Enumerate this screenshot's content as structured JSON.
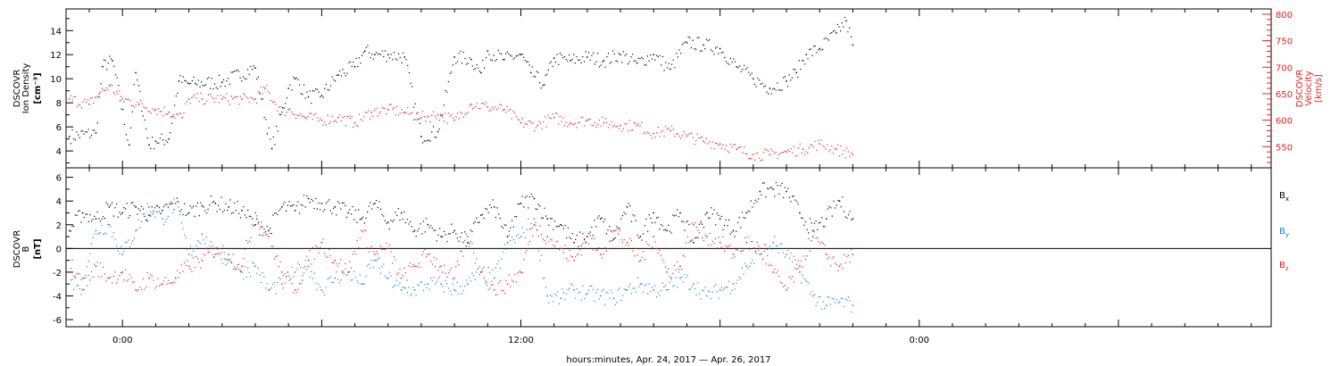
{
  "xlabel": "hours:minutes, Apr. 24, 2017 — Apr. 26, 2017",
  "x_axis": {
    "range_hours": [
      -1.7,
      34.6
    ],
    "labels": [
      {
        "hour": 0,
        "text": "0:00"
      },
      {
        "hour": 12,
        "text": "12:00"
      },
      {
        "hour": 24,
        "text": "0:00"
      }
    ],
    "major_ticks_hours": [
      0,
      6,
      12,
      18,
      24,
      30
    ],
    "minor_ticks_hours": [
      -1,
      1,
      2,
      3,
      4,
      5,
      7,
      8,
      9,
      10,
      11,
      13,
      14,
      15,
      16,
      17,
      19,
      20,
      21,
      22,
      23,
      25,
      26,
      27,
      28,
      29,
      31,
      32,
      33,
      34
    ]
  },
  "colors": {
    "density": "#000000",
    "velocity": "#e8201c",
    "bx": "#000000",
    "by": "#1f7fd6",
    "bz": "#e8201c"
  },
  "chart_data": [
    {
      "type": "scatter",
      "panel": "top",
      "ylabel_left": [
        "DSCOVR",
        "Ion Density",
        "[cm⁻³]"
      ],
      "ylabel_right": [
        "DSCOVR",
        "Velocity",
        "[km/s]"
      ],
      "ylim_left": [
        2.6,
        15.8
      ],
      "yticks_left": [
        4,
        6,
        8,
        10,
        12,
        14
      ],
      "ylim_right": [
        510,
        810
      ],
      "yticks_right": [
        550,
        600,
        650,
        700,
        750,
        800
      ],
      "series": [
        {
          "key": "density",
          "axis": "left",
          "x": [
            -1.6,
            -0.8,
            -0.6,
            -0.3,
            0.2,
            0.4,
            0.8,
            1.0,
            1.4,
            1.7,
            2.0,
            2.2,
            3.0,
            4.0,
            4.5,
            5.0,
            5.2,
            5.6,
            6.0,
            6.5,
            7.0,
            7.3,
            7.6,
            8.0,
            8.5,
            9.0,
            9.5,
            10.0,
            10.5,
            10.8,
            11.0,
            11.5,
            12.0,
            12.3,
            12.7,
            13.0,
            13.5,
            14.0,
            14.5,
            15.0,
            15.5,
            16.0,
            16.5,
            17.0,
            17.5,
            18.0,
            18.5,
            19.0,
            19.5,
            20.0,
            20.3,
            20.6,
            21.0,
            21.5,
            21.8,
            22.0
          ],
          "y": [
            5.2,
            5.5,
            11.0,
            11.5,
            4.5,
            10.5,
            4.5,
            4.8,
            5.0,
            9.8,
            9.6,
            9.6,
            9.7,
            10.9,
            4.2,
            9.2,
            10.0,
            8.5,
            8.6,
            10.3,
            11.0,
            12.3,
            12.0,
            12.0,
            11.8,
            5.2,
            5.6,
            11.8,
            11.6,
            10.5,
            12.3,
            11.6,
            12.0,
            10.5,
            9.5,
            11.7,
            11.5,
            11.8,
            11.5,
            12.0,
            11.3,
            12.0,
            10.8,
            13.0,
            12.8,
            12.5,
            11.0,
            10.0,
            9.2,
            9.8,
            10.5,
            12.0,
            12.5,
            13.8,
            14.8,
            12.8
          ]
        },
        {
          "key": "velocity",
          "axis": "right",
          "x": [
            -1.6,
            -1.0,
            -0.7,
            -0.4,
            0.0,
            0.5,
            1.0,
            1.4,
            1.8,
            2.0,
            2.4,
            3.0,
            3.6,
            4.0,
            4.3,
            4.8,
            5.0,
            5.5,
            6.0,
            6.5,
            7.0,
            7.5,
            8.0,
            8.5,
            9.0,
            9.5,
            10.0,
            10.5,
            11.0,
            11.5,
            12.0,
            12.5,
            13.0,
            13.5,
            14.0,
            14.5,
            15.0,
            15.5,
            16.0,
            16.5,
            17.0,
            17.5,
            18.0,
            18.5,
            19.0,
            19.5,
            20.0,
            20.5,
            21.0,
            21.5,
            22.0
          ],
          "y": [
            640,
            630,
            650,
            665,
            640,
            630,
            620,
            615,
            605,
            640,
            640,
            640,
            640,
            640,
            660,
            615,
            620,
            605,
            600,
            605,
            595,
            615,
            620,
            615,
            605,
            610,
            600,
            630,
            625,
            620,
            595,
            590,
            605,
            595,
            600,
            595,
            590,
            590,
            575,
            580,
            570,
            560,
            555,
            545,
            535,
            535,
            540,
            545,
            555,
            545,
            535
          ]
        }
      ]
    },
    {
      "type": "scatter",
      "panel": "bottom",
      "ylabel_left": [
        "DSCOVR",
        "B",
        "[nT]"
      ],
      "ylim": [
        -6.6,
        6.8
      ],
      "yticks": [
        -6,
        -4,
        -2,
        0,
        2,
        4,
        6
      ],
      "zero_line": true,
      "legend_position": "right",
      "series": [
        {
          "key": "bx",
          "name": "B",
          "subscript": "x",
          "x": [
            -1.6,
            -1.2,
            -0.8,
            -0.4,
            0.0,
            0.4,
            0.8,
            1.2,
            1.6,
            2.0,
            2.4,
            2.8,
            3.2,
            3.6,
            4.0,
            4.4,
            4.8,
            5.2,
            5.6,
            6.0,
            6.4,
            6.8,
            7.2,
            7.6,
            8.0,
            8.4,
            8.8,
            9.2,
            9.6,
            10.0,
            10.4,
            10.8,
            11.2,
            11.6,
            12.0,
            12.4,
            12.8,
            13.2,
            13.6,
            14.0,
            14.4,
            14.8,
            15.2,
            15.6,
            16.0,
            16.4,
            16.8,
            17.2,
            17.6,
            18.0,
            18.4,
            18.8,
            19.2,
            19.6,
            20.0,
            20.4,
            20.8,
            21.2,
            21.6,
            22.0
          ],
          "y": [
            1.5,
            3.0,
            2.5,
            3.5,
            3.0,
            3.5,
            2.8,
            3.2,
            3.8,
            3.0,
            3.6,
            3.8,
            3.5,
            3.2,
            2.0,
            1.5,
            3.5,
            3.2,
            4.2,
            3.8,
            3.5,
            3.0,
            2.5,
            3.8,
            2.2,
            3.0,
            1.5,
            2.0,
            1.0,
            1.5,
            0.5,
            2.8,
            3.5,
            1.0,
            3.8,
            4.2,
            2.5,
            2.0,
            0.5,
            1.0,
            2.5,
            0.8,
            3.5,
            1.0,
            3.0,
            1.5,
            3.0,
            0.5,
            3.0,
            2.5,
            1.5,
            3.0,
            4.8,
            5.0,
            4.8,
            3.0,
            1.5,
            2.5,
            4.0,
            2.5
          ]
        },
        {
          "key": "by",
          "name": "B",
          "subscript": "y",
          "x": [
            -1.6,
            -1.2,
            -0.8,
            -0.4,
            0.0,
            0.4,
            0.8,
            1.2,
            1.6,
            2.0,
            2.4,
            2.8,
            3.2,
            3.6,
            4.0,
            4.4,
            4.8,
            5.2,
            5.6,
            6.0,
            6.4,
            6.8,
            7.2,
            7.6,
            8.0,
            8.4,
            8.8,
            9.2,
            9.6,
            10.0,
            10.4,
            10.8,
            11.2,
            11.6,
            12.0,
            12.4,
            12.8,
            13.2,
            13.6,
            14.0,
            14.4,
            14.8,
            15.2,
            15.6,
            16.0,
            16.4,
            16.8,
            17.2,
            17.6,
            18.0,
            18.4,
            18.8,
            19.2,
            19.6,
            20.0,
            20.4,
            20.8,
            21.2,
            21.6,
            22.0
          ],
          "y": [
            -3.0,
            -2.5,
            1.5,
            2.0,
            -0.5,
            1.5,
            3.5,
            2.5,
            3.8,
            -0.5,
            1.2,
            -0.5,
            -1.0,
            -2.0,
            -1.5,
            -3.5,
            -3.0,
            -2.0,
            -1.5,
            -3.5,
            -2.5,
            -2.0,
            -3.0,
            -1.0,
            -2.5,
            -3.5,
            -3.5,
            -3.0,
            -3.0,
            -3.5,
            -3.0,
            -2.0,
            -2.5,
            0.5,
            1.0,
            2.5,
            -4.0,
            -4.2,
            -3.5,
            -3.8,
            -4.0,
            -4.2,
            -3.5,
            -3.0,
            -3.5,
            -3.5,
            -2.5,
            -3.0,
            -4.0,
            -3.5,
            -3.0,
            -1.5,
            -0.5,
            0.5,
            -0.5,
            -2.0,
            -4.0,
            -4.8,
            -4.5,
            -4.8
          ]
        },
        {
          "key": "bz",
          "name": "B",
          "subscript": "z",
          "x": [
            -1.6,
            -1.2,
            -0.8,
            -0.4,
            0.0,
            0.4,
            0.8,
            1.2,
            1.6,
            2.0,
            2.4,
            2.8,
            3.2,
            3.6,
            4.0,
            4.4,
            4.8,
            5.2,
            5.6,
            6.0,
            6.4,
            6.8,
            7.2,
            7.6,
            8.0,
            8.4,
            8.8,
            9.2,
            9.6,
            10.0,
            10.4,
            10.8,
            11.2,
            11.6,
            12.0,
            12.4,
            12.8,
            13.2,
            13.6,
            14.0,
            14.4,
            14.8,
            15.2,
            15.6,
            16.0,
            16.4,
            16.8,
            17.2,
            17.6,
            18.0,
            18.4,
            18.8,
            19.2,
            19.6,
            20.0,
            20.4,
            20.8,
            21.2,
            21.6,
            22.0
          ],
          "y": [
            -1.0,
            -3.5,
            -1.5,
            -2.5,
            -2.0,
            -3.5,
            -2.5,
            -3.0,
            -2.5,
            -1.5,
            -1.0,
            0.0,
            -0.5,
            -1.5,
            3.0,
            1.0,
            -2.0,
            -3.5,
            -1.0,
            0.5,
            -1.0,
            -2.0,
            1.5,
            -0.5,
            0.0,
            -2.5,
            -1.5,
            -0.5,
            -1.5,
            -2.5,
            1.0,
            -2.0,
            -3.5,
            -3.0,
            -2.0,
            2.0,
            1.0,
            0.0,
            -1.0,
            1.0,
            -0.5,
            1.5,
            0.5,
            -1.0,
            1.0,
            -2.0,
            -1.5,
            2.0,
            1.0,
            0.5,
            -0.5,
            0.5,
            0.0,
            -2.0,
            -3.5,
            -1.5,
            1.0,
            -0.5,
            -1.5,
            -0.5
          ]
        }
      ]
    }
  ]
}
